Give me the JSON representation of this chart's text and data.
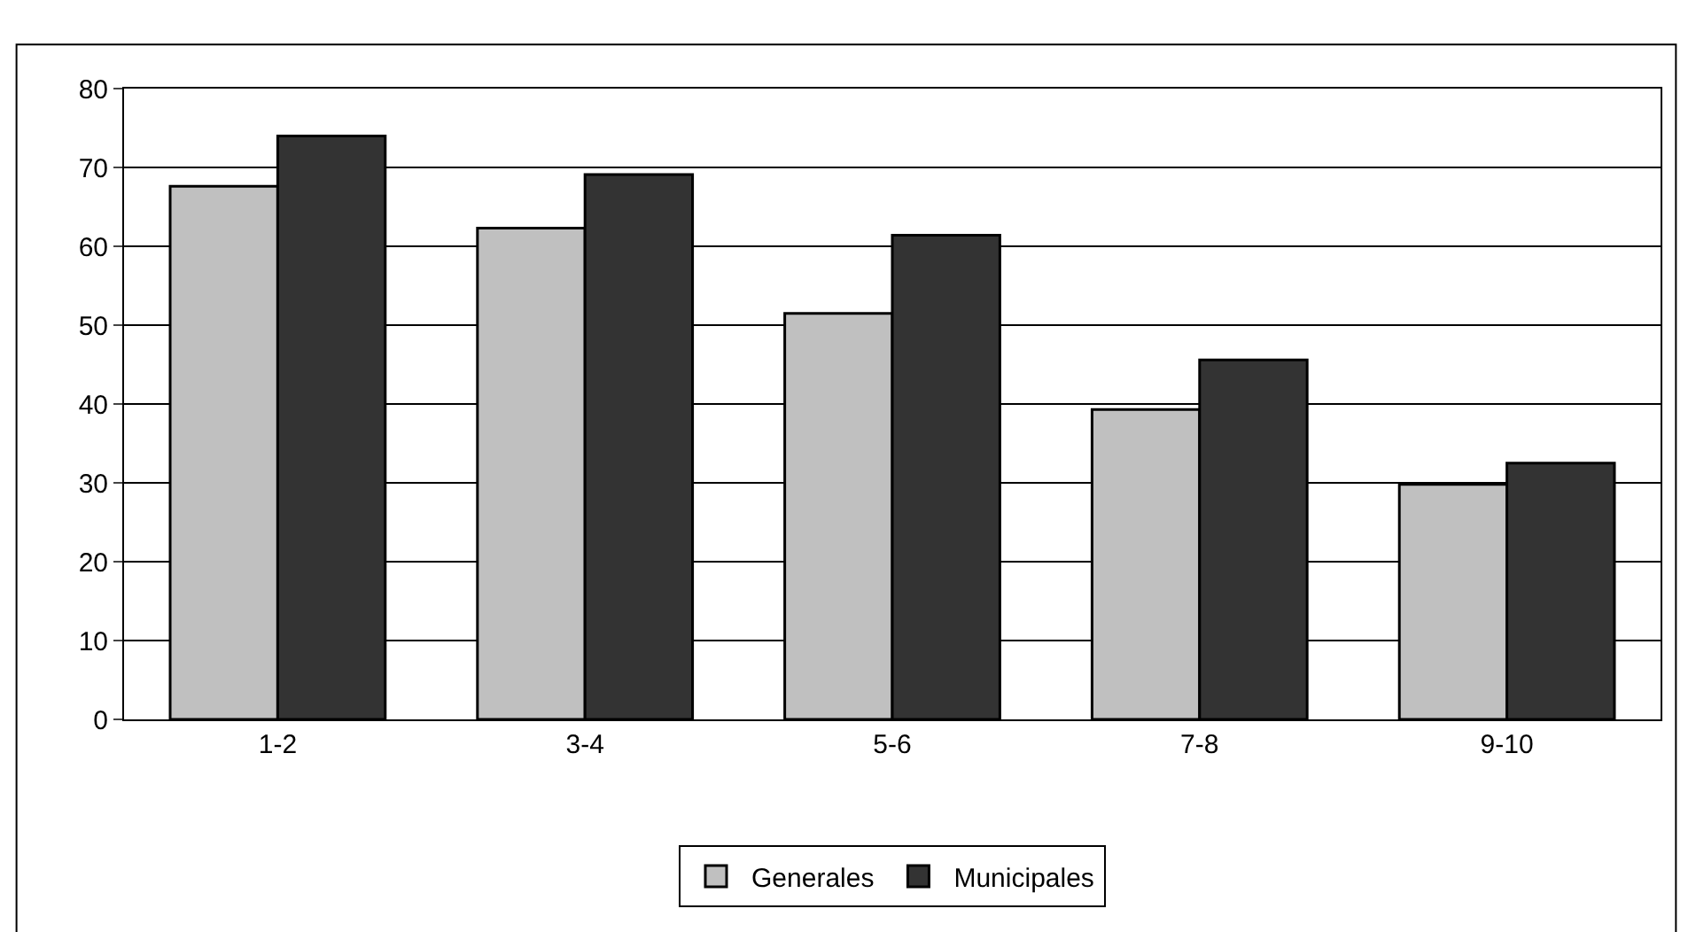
{
  "chart_data": {
    "type": "bar",
    "categories": [
      "1-2",
      "3-4",
      "5-6",
      "7-8",
      "9-10"
    ],
    "series": [
      {
        "name": "Generales",
        "color": "#c0c0c0",
        "values": [
          67.6,
          62.3,
          51.5,
          39.3,
          29.8
        ]
      },
      {
        "name": "Municipales",
        "color": "#333333",
        "values": [
          74.0,
          69.1,
          61.4,
          45.6,
          32.5
        ]
      }
    ],
    "ylim": [
      0,
      80
    ],
    "yticks": [
      0,
      10,
      20,
      30,
      40,
      50,
      60,
      70,
      80
    ],
    "grid": "y",
    "legend": "bottom"
  }
}
